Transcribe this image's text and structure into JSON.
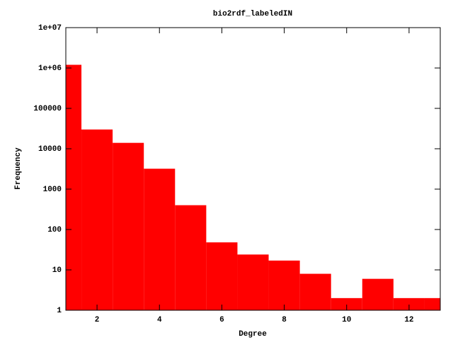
{
  "chart_data": {
    "type": "bar",
    "title": "bio2rdf_labeledIN",
    "x_label": "Degree",
    "y_label": "Frequency",
    "x": [
      1,
      2,
      3,
      4,
      5,
      6,
      7,
      8,
      9,
      10,
      11,
      12,
      13
    ],
    "values": [
      1200000,
      30000,
      14000,
      3200,
      400,
      48,
      24,
      17,
      8,
      2,
      6,
      2,
      2
    ],
    "color": "#ff0000",
    "xlim": [
      1,
      13
    ],
    "xticks": [
      2,
      4,
      6,
      8,
      10,
      12
    ],
    "ylim": [
      1,
      10000000
    ],
    "ylog": true,
    "yticks": [
      1,
      10,
      100,
      1000,
      10000,
      100000,
      {
        "value": 1000000,
        "label": "1e+06"
      },
      {
        "value": 10000000,
        "label": "1e+07"
      }
    ]
  }
}
